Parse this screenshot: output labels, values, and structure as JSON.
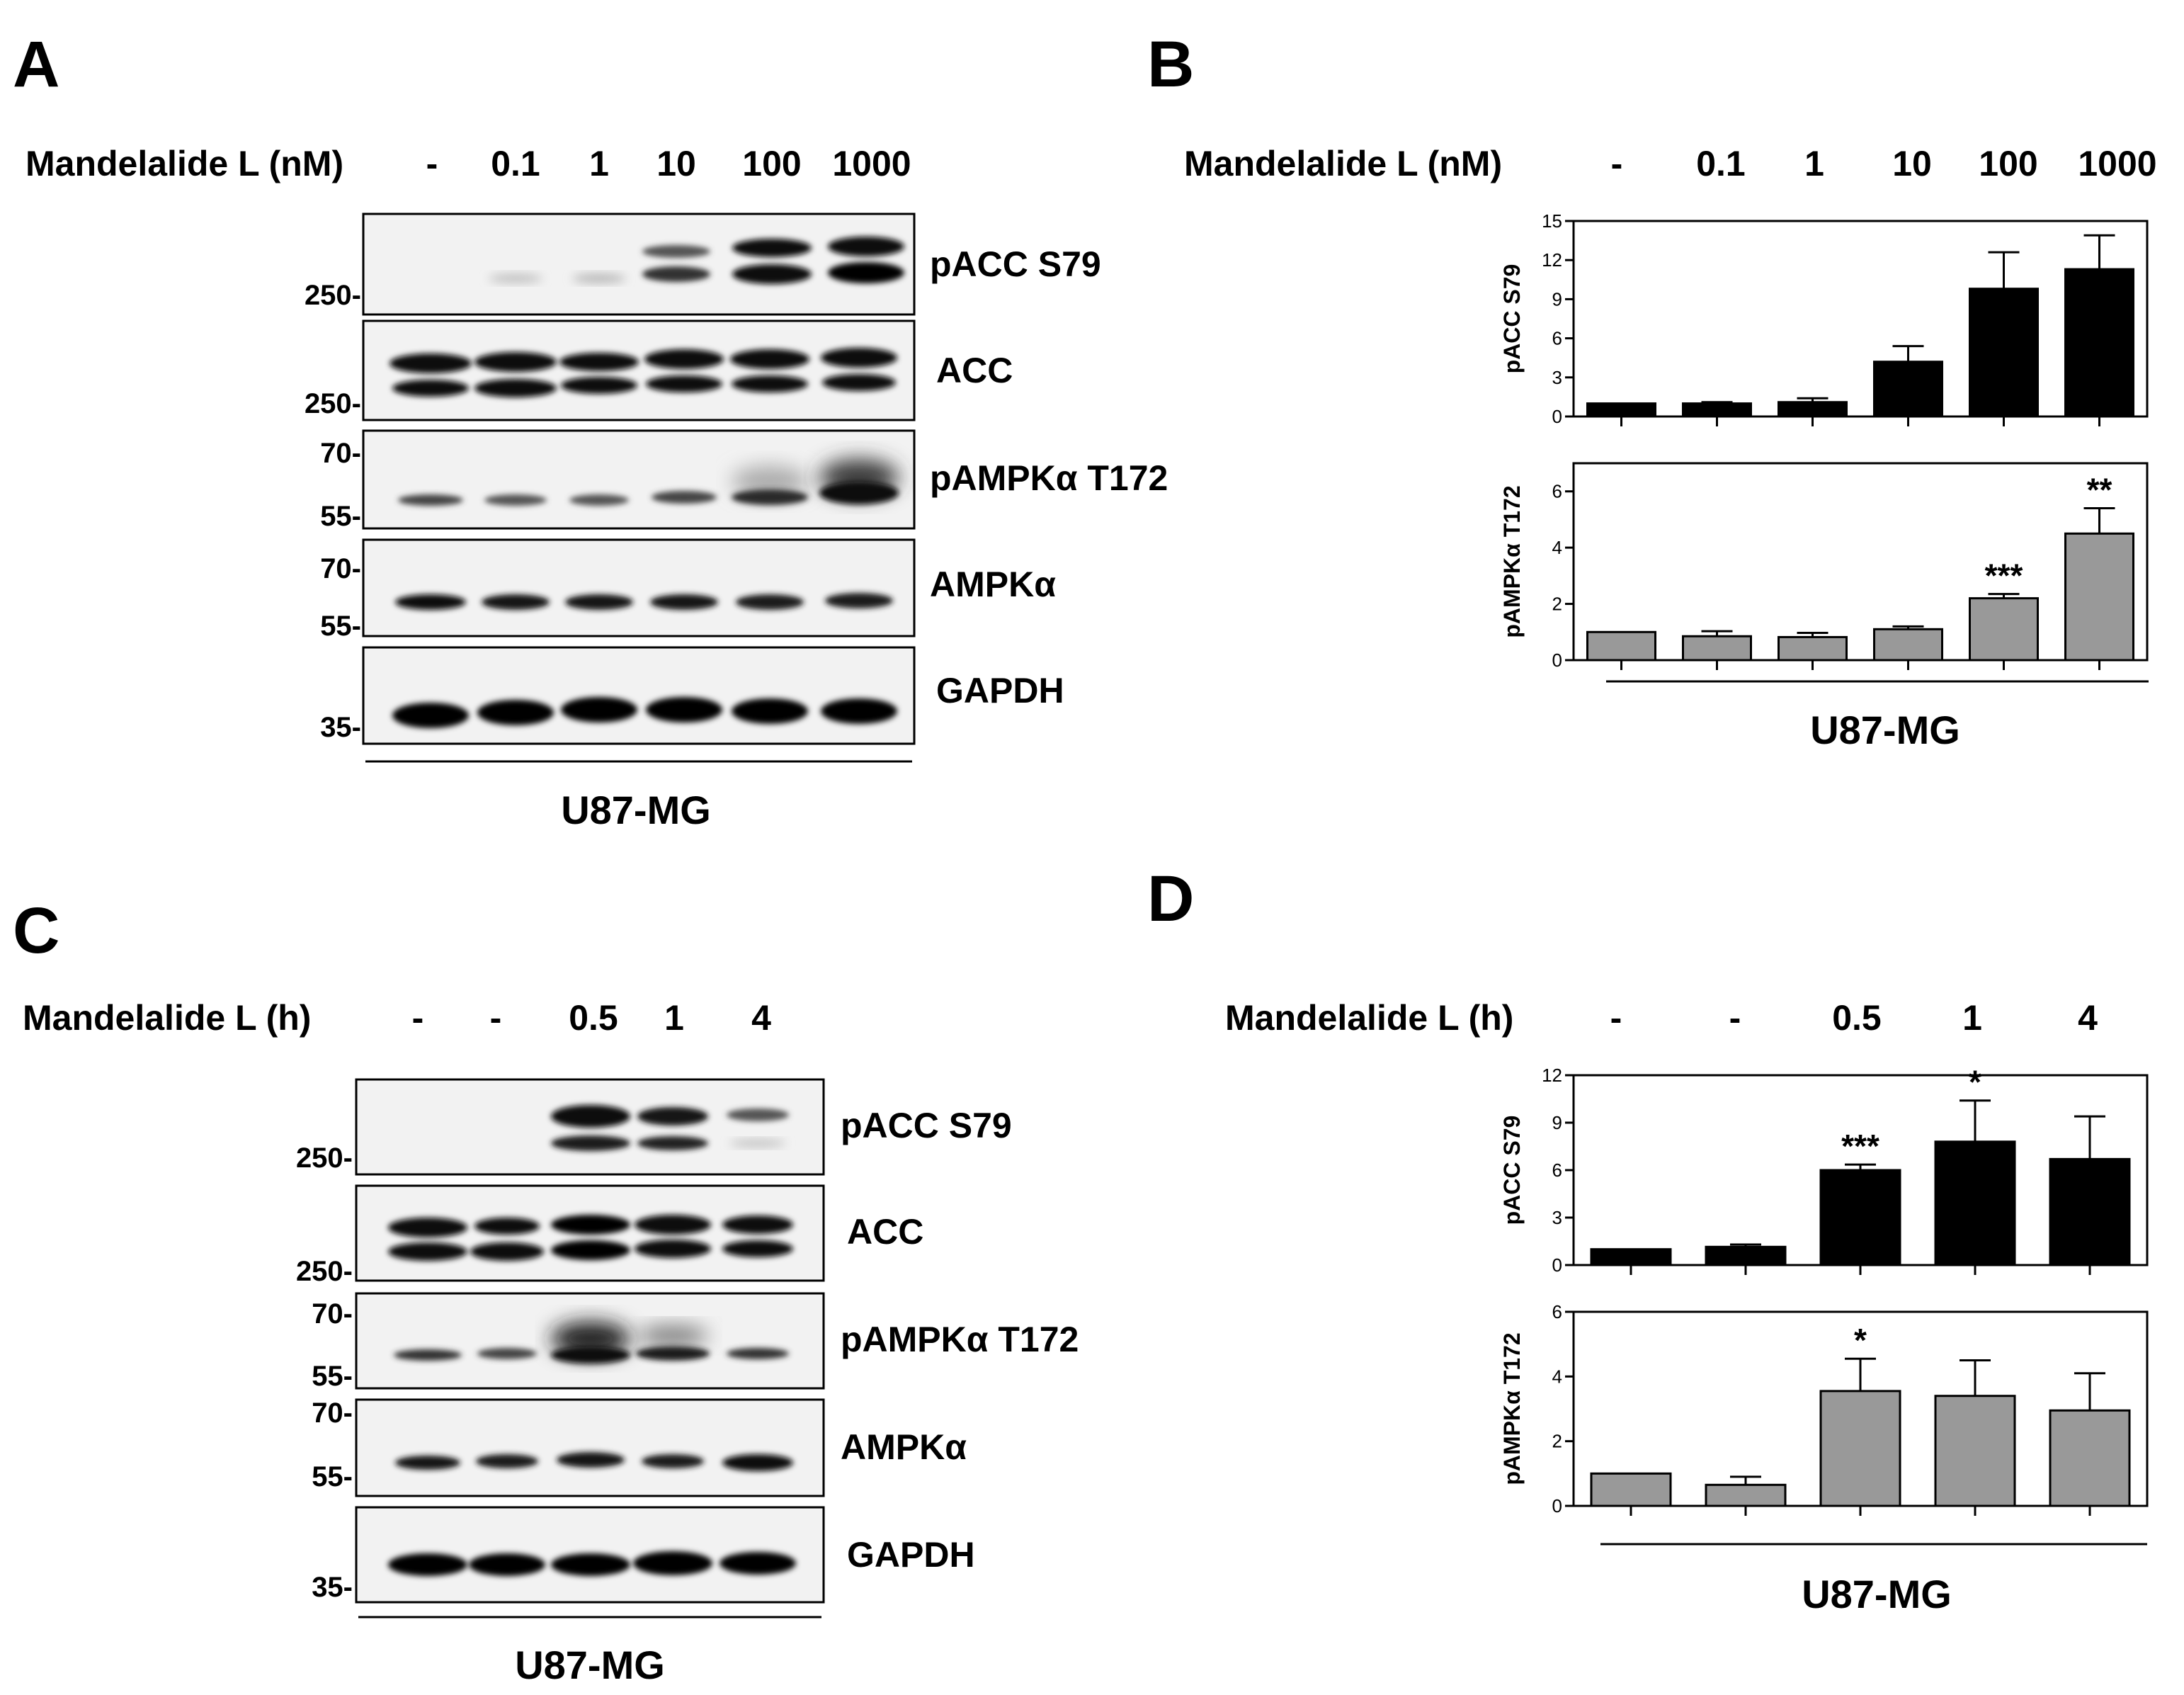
{
  "panels": {
    "A": {
      "letter": "A",
      "treatment_label": "Mandelalide L (nM)",
      "lanes": [
        "-",
        "0.1",
        "1",
        "10",
        "100",
        "1000"
      ],
      "blots": [
        {
          "name": "pACC S79",
          "markers": [
            "250-"
          ]
        },
        {
          "name": "ACC",
          "markers": [
            "250-"
          ]
        },
        {
          "name": "pAMPKα  T172",
          "markers": [
            "70-",
            "55-"
          ]
        },
        {
          "name": "AMPKα",
          "markers": [
            "70-",
            "55-"
          ]
        },
        {
          "name": "GAPDH",
          "markers": [
            "35-"
          ]
        }
      ],
      "cell_line": "U87-MG"
    },
    "B": {
      "letter": "B",
      "treatment_label": "Mandelalide L (nM)",
      "lanes": [
        "-",
        "0.1",
        "1",
        "10",
        "100",
        "1000"
      ],
      "cell_line": "U87-MG"
    },
    "C": {
      "letter": "C",
      "treatment_label": "Mandelalide L (h)",
      "lanes": [
        "-",
        "-",
        "0.5",
        "1",
        "4"
      ],
      "blots": [
        {
          "name": "pACC S79",
          "markers": [
            "250-"
          ]
        },
        {
          "name": "ACC",
          "markers": [
            "250-"
          ]
        },
        {
          "name": "pAMPKα  T172",
          "markers": [
            "70-",
            "55-"
          ]
        },
        {
          "name": "AMPKα",
          "markers": [
            "70-",
            "55-"
          ]
        },
        {
          "name": "GAPDH",
          "markers": [
            "35-"
          ]
        }
      ],
      "cell_line": "U87-MG"
    },
    "D": {
      "letter": "D",
      "treatment_label": "Mandelalide L (h)",
      "lanes": [
        "-",
        "-",
        "0.5",
        "1",
        "4"
      ],
      "cell_line": "U87-MG"
    }
  },
  "colors": {
    "pACC_bar": "#000000",
    "pAMPK_bar": "#999999"
  },
  "chart_data": [
    {
      "id": "B-top",
      "type": "bar",
      "categories": [
        "-",
        "0.1",
        "1",
        "10",
        "100",
        "1000"
      ],
      "values": [
        1,
        1,
        1.1,
        4.2,
        9.8,
        11.3
      ],
      "errors": [
        0,
        0.1,
        0.3,
        1.2,
        2.8,
        2.6
      ],
      "significance": [
        "",
        "",
        "",
        "",
        "",
        ""
      ],
      "ylabel": "pACC S79",
      "ylim": [
        0,
        15
      ],
      "yticks": [
        0,
        3,
        6,
        9,
        12,
        15
      ],
      "color": "#000000"
    },
    {
      "id": "B-bottom",
      "type": "bar",
      "categories": [
        "-",
        "0.1",
        "1",
        "10",
        "100",
        "1000"
      ],
      "values": [
        1,
        0.85,
        0.82,
        1.1,
        2.2,
        4.5
      ],
      "errors": [
        0,
        0.18,
        0.15,
        0.1,
        0.15,
        0.9
      ],
      "significance": [
        "",
        "",
        "",
        "",
        "***",
        "**"
      ],
      "ylabel": "pAMPKα T172",
      "ylim": [
        0,
        7
      ],
      "yticks": [
        0,
        2,
        4,
        6
      ],
      "color": "#999999"
    },
    {
      "id": "D-top",
      "type": "bar",
      "categories": [
        "-",
        "-",
        "0.5",
        "1",
        "4"
      ],
      "values": [
        1,
        1.15,
        6,
        7.8,
        6.7
      ],
      "errors": [
        0,
        0.15,
        0.35,
        2.6,
        2.7
      ],
      "significance": [
        "",
        "",
        "***",
        "*",
        ""
      ],
      "ylabel": "pACC S79",
      "ylim": [
        0,
        12
      ],
      "yticks": [
        0,
        3,
        6,
        9,
        12
      ],
      "color": "#000000"
    },
    {
      "id": "D-bottom",
      "type": "bar",
      "categories": [
        "-",
        "-",
        "0.5",
        "1",
        "4"
      ],
      "values": [
        1,
        0.65,
        3.55,
        3.4,
        2.95
      ],
      "errors": [
        0,
        0.25,
        1.0,
        1.1,
        1.15
      ],
      "significance": [
        "",
        "",
        "*",
        "",
        ""
      ],
      "ylabel": "pAMPKα T172",
      "ylim": [
        0,
        6
      ],
      "yticks": [
        0,
        2,
        4,
        6
      ],
      "color": "#999999"
    }
  ]
}
